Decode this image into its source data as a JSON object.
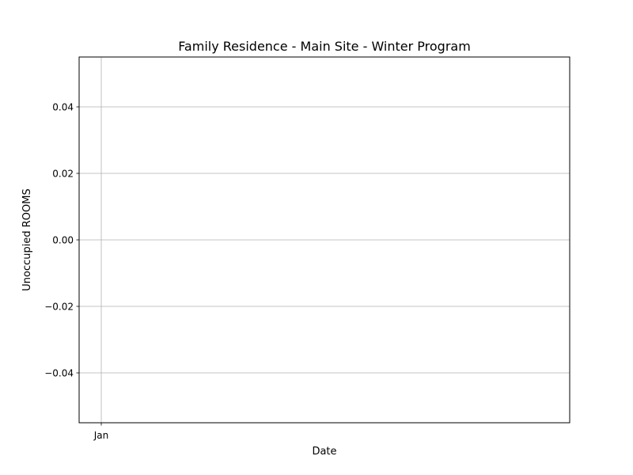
{
  "chart_data": {
    "type": "line",
    "title": "Family Residence - Main Site - Winter Program",
    "xlabel": "Date",
    "ylabel": "Unoccupied ROOMS",
    "x_ticks": [
      "Jan"
    ],
    "y_ticks": [
      "0.04",
      "0.02",
      "0.00",
      "−0.02",
      "−0.04"
    ],
    "y_tick_values": [
      0.04,
      0.02,
      0.0,
      -0.02,
      -0.04
    ],
    "ylim": [
      -0.055,
      0.055
    ],
    "series": [],
    "grid": true,
    "legend": "none"
  }
}
